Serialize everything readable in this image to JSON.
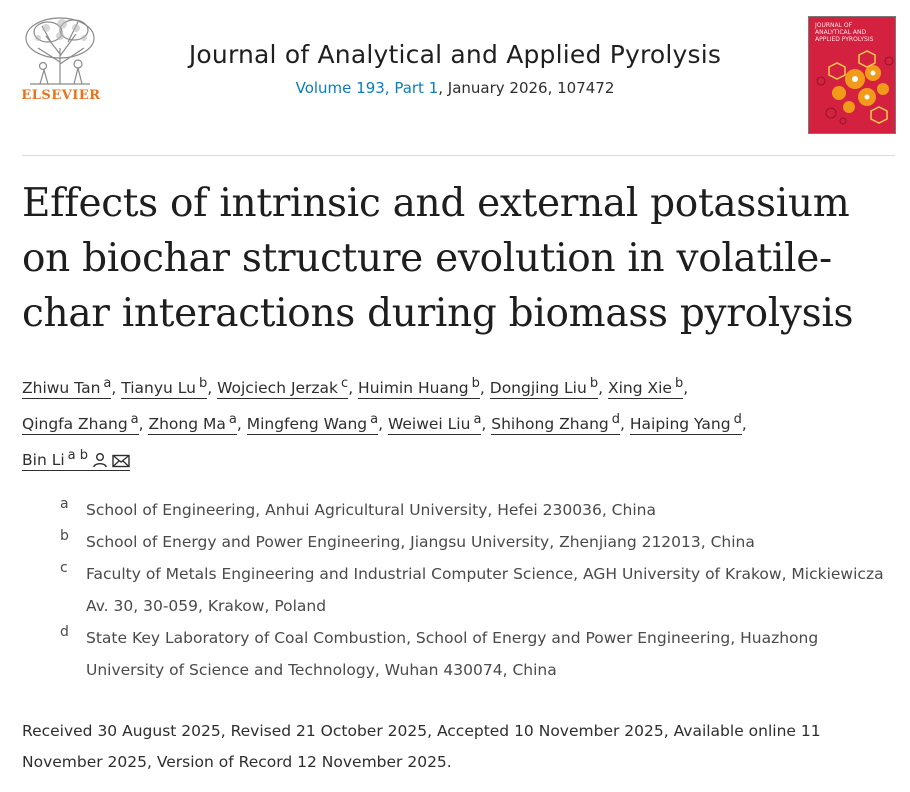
{
  "publisher": {
    "name": "ELSEVIER"
  },
  "journal": {
    "title": "Journal of Analytical and Applied Pyrolysis",
    "volume": "Volume 193, Part 1",
    "issue_rest": ", January 2026, 107472",
    "cover_text_lines": [
      "Journal of",
      "Analytical and",
      "Applied Pyrolysis"
    ],
    "cover_color": "#d4213f"
  },
  "article": {
    "title": "Effects of intrinsic and external potassium on biochar structure evolution in volatile-char interactions during biomass pyrolysis"
  },
  "authors": [
    {
      "name": "Zhiwu Tan",
      "aff": "a"
    },
    {
      "name": "Tianyu Lu",
      "aff": "b"
    },
    {
      "name": "Wojciech Jerzak",
      "aff": "c"
    },
    {
      "name": "Huimin Huang",
      "aff": "b"
    },
    {
      "name": "Dongjing Liu",
      "aff": "b"
    },
    {
      "name": "Xing Xie",
      "aff": "b"
    },
    {
      "name": "Qingfa Zhang",
      "aff": "a"
    },
    {
      "name": "Zhong Ma",
      "aff": "a"
    },
    {
      "name": "Mingfeng Wang",
      "aff": "a"
    },
    {
      "name": "Weiwei Liu",
      "aff": "a"
    },
    {
      "name": "Shihong Zhang",
      "aff": "d"
    },
    {
      "name": "Haiping Yang",
      "aff": "d"
    },
    {
      "name": "Bin Li",
      "aff": "a b"
    }
  ],
  "affiliations": [
    {
      "letter": "a",
      "text": "School of Engineering, Anhui Agricultural University, Hefei 230036, China"
    },
    {
      "letter": "b",
      "text": "School of Energy and Power Engineering, Jiangsu University, Zhenjiang 212013, China"
    },
    {
      "letter": "c",
      "text": "Faculty of Metals Engineering and Industrial Computer Science, AGH University of Krakow, Mickiewicza Av. 30, 30-059, Krakow, Poland"
    },
    {
      "letter": "d",
      "text": "State Key Laboratory of Coal Combustion, School of Energy and Power Engineering, Huazhong University of Science and Technology, Wuhan 430074, China"
    }
  ],
  "dates": "Received 30 August 2025, Revised 21 October 2025, Accepted 10 November 2025, Available online 11 November 2025, Version of Record 12 November 2025.",
  "icons": {
    "corresponding": "person-icon",
    "email": "mail-icon"
  }
}
